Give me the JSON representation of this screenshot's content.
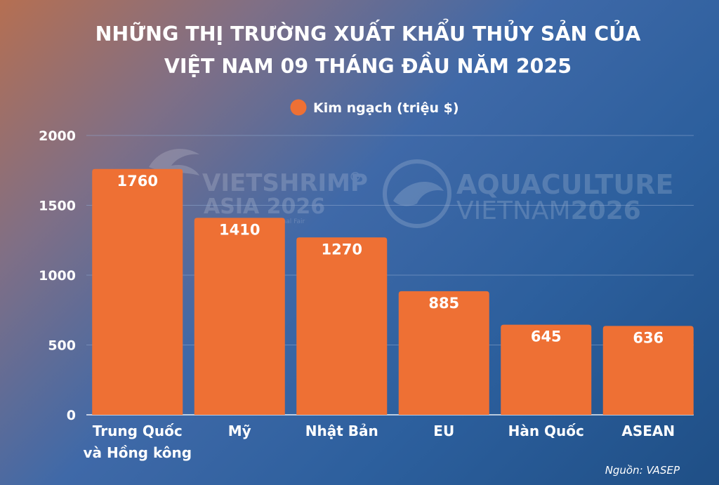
{
  "title_lines": [
    "NHỮNG THỊ TRƯỜNG XUẤT KHẨU THỦY SẢN CỦA",
    "VIỆT NAM 09 THÁNG ĐẦU NĂM 2025"
  ],
  "source": "Nguồn: VASEP",
  "watermarks": {
    "left_brand": "VIETSHRIMP",
    "left_registered": "®",
    "left_sub": "ASIA 2026",
    "left_tagline": "onal Fair",
    "right_brand": "AQUACULTURE",
    "right_sub_light": "VIETNAM",
    "right_sub_bold": "2026"
  },
  "colors": {
    "bar": "#ee7034",
    "grid": "#8fa8cf",
    "axis": "#ffffff"
  },
  "chart_data": {
    "type": "bar",
    "title": "NHỮNG THỊ TRƯỜNG XUẤT KHẨU THỦY SẢN CỦA VIỆT NAM 09 THÁNG ĐẦU NĂM 2025",
    "categories": [
      [
        "Trung Quốc",
        "và Hồng kông"
      ],
      [
        "Mỹ"
      ],
      [
        "Nhật Bản"
      ],
      [
        "EU"
      ],
      [
        "Hàn Quốc"
      ],
      [
        "ASEAN"
      ]
    ],
    "series": [
      {
        "name": "Kim ngạch (triệu $)",
        "values": [
          1760,
          1410,
          1270,
          885,
          645,
          636
        ]
      }
    ],
    "data_labels": [
      "1760",
      "1410",
      "1270",
      "885",
      "645",
      "636"
    ],
    "yticks": [
      0,
      500,
      1000,
      1500,
      2000
    ],
    "ylim": [
      0,
      2000
    ],
    "xlabel": "",
    "ylabel": "",
    "grid": true,
    "legend": "top-center",
    "data_labels_position": "inside-top"
  }
}
